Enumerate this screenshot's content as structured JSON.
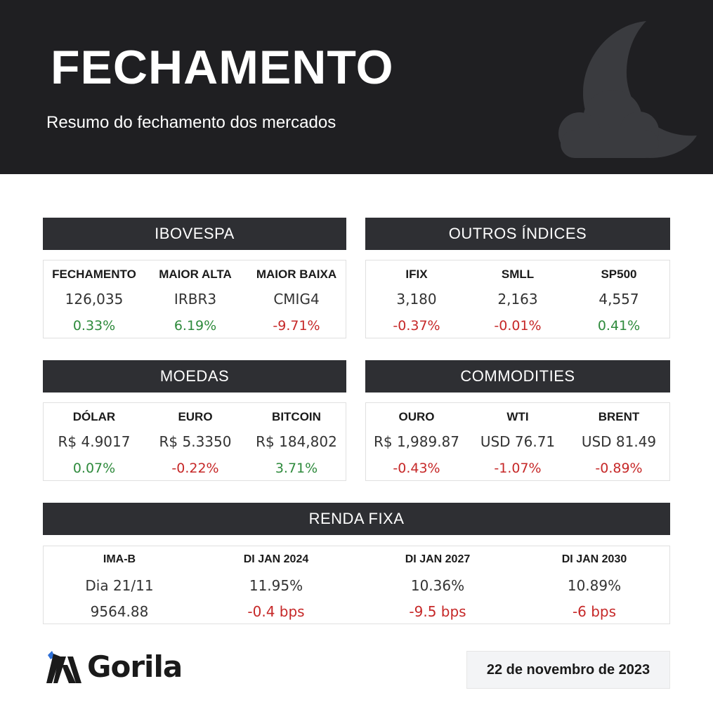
{
  "header": {
    "title": "FECHAMENTO",
    "subtitle": "Resumo do fechamento dos mercados",
    "icon": "moon-cloud-icon"
  },
  "colors": {
    "header_bg": "#1f1f22",
    "section_bg": "#2e2f33",
    "positive": "#2e8a3c",
    "negative": "#c62828"
  },
  "ibovespa": {
    "title": "IBOVESPA",
    "items": [
      {
        "label": "FECHAMENTO",
        "value": "126,035",
        "change": "0.33%",
        "trend": "up"
      },
      {
        "label": "MAIOR ALTA",
        "value": "IRBR3",
        "change": "6.19%",
        "trend": "up"
      },
      {
        "label": "MAIOR BAIXA",
        "value": "CMIG4",
        "change": "-9.71%",
        "trend": "down"
      }
    ]
  },
  "outros": {
    "title": "OUTROS ÍNDICES",
    "items": [
      {
        "label": "IFIX",
        "value": "3,180",
        "change": "-0.37%",
        "trend": "down"
      },
      {
        "label": "SMLL",
        "value": "2,163",
        "change": "-0.01%",
        "trend": "down"
      },
      {
        "label": "SP500",
        "value": "4,557",
        "change": "0.41%",
        "trend": "up"
      }
    ]
  },
  "moedas": {
    "title": "MOEDAS",
    "items": [
      {
        "label": "DÓLAR",
        "value": "R$ 4.9017",
        "change": "0.07%",
        "trend": "up"
      },
      {
        "label": "EURO",
        "value": "R$ 5.3350",
        "change": "-0.22%",
        "trend": "down"
      },
      {
        "label": "BITCOIN",
        "value": "R$ 184,802",
        "change": "3.71%",
        "trend": "up"
      }
    ]
  },
  "commodities": {
    "title": "COMMODITIES",
    "items": [
      {
        "label": "OURO",
        "value": "R$ 1,989.87",
        "change": "-0.43%",
        "trend": "down"
      },
      {
        "label": "WTI",
        "value": "USD 76.71",
        "change": "-1.07%",
        "trend": "down"
      },
      {
        "label": "BRENT",
        "value": "USD 81.49",
        "change": "-0.89%",
        "trend": "down"
      }
    ]
  },
  "renda_fixa": {
    "title": "RENDA FIXA",
    "items": [
      {
        "label": "IMA-B",
        "value": "Dia 21/11",
        "change": "9564.88",
        "trend": "neutral"
      },
      {
        "label": "DI JAN 2024",
        "value": "11.95%",
        "change": "-0.4 bps",
        "trend": "down"
      },
      {
        "label": "DI JAN 2027",
        "value": "10.36%",
        "change": "-9.5 bps",
        "trend": "down"
      },
      {
        "label": "DI JAN 2030",
        "value": "10.89%",
        "change": "-6 bps",
        "trend": "down"
      }
    ]
  },
  "footer": {
    "logo_text": "Gorila",
    "logo_icon": "gorila-logo-icon",
    "date": "22 de novembro de 2023"
  }
}
